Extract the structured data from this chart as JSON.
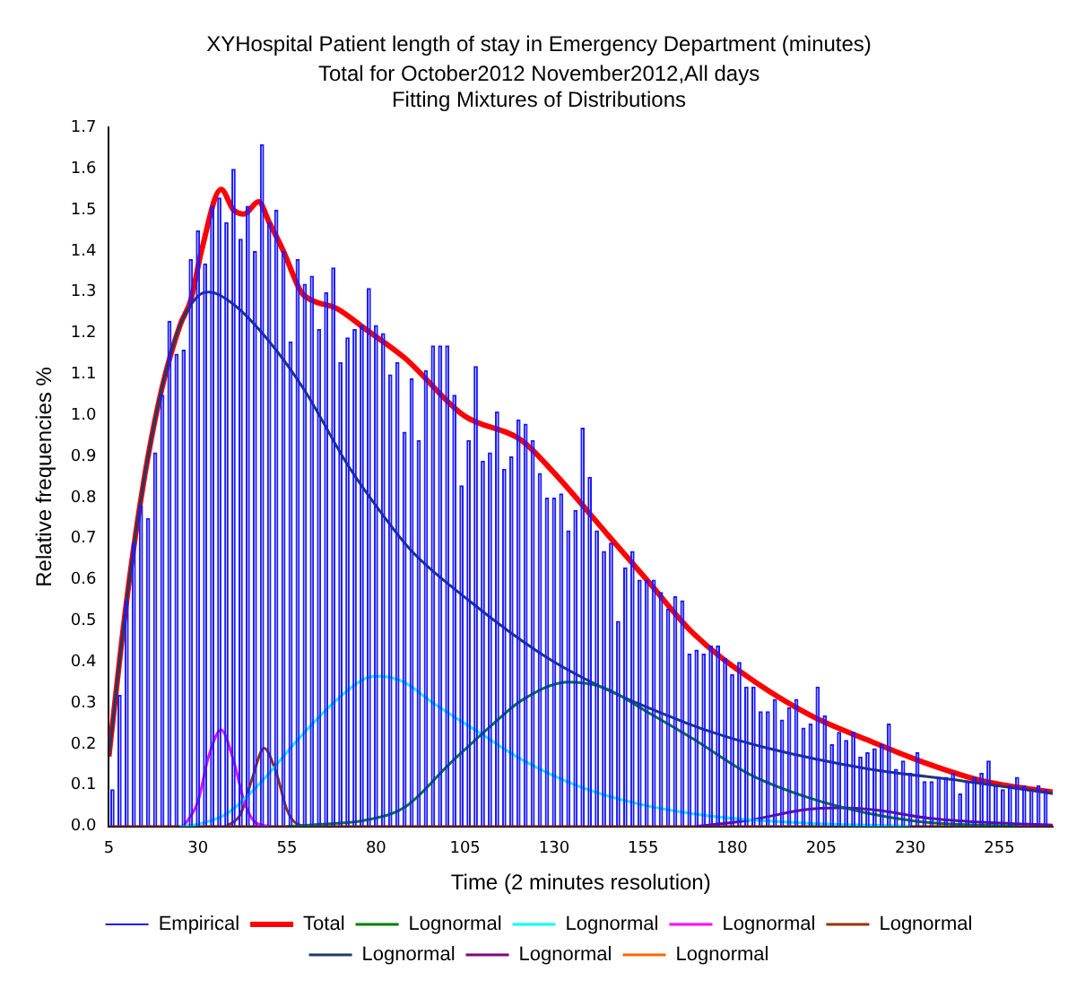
{
  "chart_data": {
    "type": "histogram",
    "title": "XYHospital Patient length of stay in Emergency Department (minutes)",
    "subtitle": "Total for October2012 November2012,All days\nFitting Mixtures of Distributions",
    "xlabel": "Time (2 minutes resolution)",
    "ylabel": "Relative frequencies %",
    "bins": [
      5,
      7,
      9,
      11,
      13,
      15,
      17,
      19,
      21,
      23,
      25,
      27,
      29,
      31,
      33,
      35,
      37,
      39,
      41,
      43,
      45,
      47,
      49,
      51,
      53,
      55,
      57,
      59,
      61,
      63,
      65,
      67,
      69,
      71,
      73,
      75,
      77,
      79,
      81,
      83,
      85,
      87,
      89,
      91,
      93,
      95,
      97,
      99,
      101,
      103,
      105,
      107,
      109,
      111,
      113,
      115,
      117,
      119,
      121,
      123,
      125,
      127,
      129,
      131,
      133,
      135,
      137,
      139,
      141,
      143,
      145,
      147,
      149,
      151,
      153,
      155,
      157,
      159,
      161,
      163,
      165,
      167,
      169,
      171,
      173,
      175,
      177,
      179,
      181,
      183,
      185,
      187,
      189,
      191,
      193,
      195,
      197,
      199,
      201,
      203,
      205,
      207,
      209,
      211,
      213,
      215,
      217,
      219,
      221,
      223,
      225,
      227,
      229,
      231,
      233,
      235,
      237,
      239,
      241,
      243,
      245,
      247,
      249,
      251,
      253,
      255,
      257,
      259,
      261,
      263,
      265,
      267,
      269
    ],
    "series": [
      {
        "name": "Empirical",
        "type": "histogram",
        "color": "#1a1aff",
        "values": [
          0.09,
          0.32,
          0.55,
          0.69,
          0.78,
          0.75,
          0.91,
          1.05,
          1.23,
          1.15,
          1.16,
          1.38,
          1.45,
          1.37,
          1.51,
          1.53,
          1.47,
          1.6,
          1.43,
          1.51,
          1.4,
          1.66,
          1.47,
          1.5,
          1.4,
          1.18,
          1.38,
          1.32,
          1.34,
          1.21,
          1.3,
          1.36,
          1.13,
          1.19,
          1.21,
          1.22,
          1.31,
          1.22,
          1.2,
          1.1,
          1.13,
          0.96,
          1.09,
          0.94,
          1.11,
          1.17,
          1.17,
          1.17,
          1.05,
          0.83,
          0.94,
          1.12,
          0.89,
          0.91,
          1.01,
          0.87,
          0.9,
          0.99,
          0.98,
          0.94,
          0.86,
          0.8,
          0.8,
          0.81,
          0.72,
          0.77,
          0.97,
          0.85,
          0.72,
          0.67,
          0.69,
          0.5,
          0.63,
          0.67,
          0.6,
          0.6,
          0.6,
          0.57,
          0.53,
          0.56,
          0.55,
          0.42,
          0.43,
          0.42,
          0.44,
          0.44,
          0.41,
          0.37,
          0.4,
          0.34,
          0.34,
          0.28,
          0.28,
          0.31,
          0.26,
          0.29,
          0.31,
          0.24,
          0.25,
          0.34,
          0.27,
          0.2,
          0.23,
          0.21,
          0.23,
          0.17,
          0.18,
          0.19,
          0.2,
          0.25,
          0.14,
          0.16,
          0.13,
          0.18,
          0.11,
          0.11,
          0.12,
          0.12,
          0.13,
          0.08,
          0.11,
          0.12,
          0.13,
          0.16,
          0.1,
          0.09,
          0.1,
          0.12,
          0.1,
          0.09,
          0.1,
          0.09
        ]
      },
      {
        "name": "Total",
        "type": "line",
        "color": "#ff0000",
        "x": [
          5,
          10,
          15,
          20,
          25,
          28,
          31,
          36.5,
          40,
          43,
          47,
          50,
          54,
          59,
          62,
          69,
          77,
          88,
          104.6,
          120.7,
          130,
          145,
          156,
          169,
          185,
          202,
          218,
          234,
          250.5,
          270
        ],
        "values": [
          0.17,
          0.55,
          0.85,
          1.07,
          1.22,
          1.28,
          1.4,
          1.55,
          1.5,
          1.49,
          1.52,
          1.47,
          1.4,
          1.3,
          1.28,
          1.26,
          1.21,
          1.14,
          1.0,
          0.94,
          0.86,
          0.71,
          0.6,
          0.47,
          0.36,
          0.27,
          0.21,
          0.155,
          0.11,
          0.083
        ]
      },
      {
        "name": "Lognormal",
        "type": "line",
        "color": "#008000",
        "x": [
          55,
          65,
          77,
          88,
          101,
          113,
          121,
          134,
          144,
          156,
          169,
          185,
          202,
          218,
          234,
          260
        ],
        "values": [
          0,
          0.005,
          0.015,
          0.046,
          0.155,
          0.25,
          0.307,
          0.351,
          0.337,
          0.279,
          0.213,
          0.126,
          0.068,
          0.032,
          0.01,
          0
        ]
      },
      {
        "name": "Lognormal",
        "type": "line",
        "color": "#00ffff",
        "x": [
          25,
          30,
          38,
          48,
          58,
          68,
          77,
          81,
          88,
          96,
          109,
          121,
          137,
          154,
          174,
          200,
          230
        ],
        "values": [
          0,
          0.005,
          0.03,
          0.11,
          0.21,
          0.3,
          0.36,
          0.365,
          0.35,
          0.3,
          0.228,
          0.162,
          0.097,
          0.054,
          0.025,
          0.008,
          0
        ]
      },
      {
        "name": "Lognormal",
        "type": "line",
        "color": "#ff00ff",
        "x": [
          26,
          30,
          33,
          36.5,
          40,
          43,
          46,
          50
        ],
        "values": [
          0,
          0.06,
          0.17,
          0.235,
          0.16,
          0.06,
          0.01,
          0
        ]
      },
      {
        "name": "Lognormal",
        "type": "line",
        "color": "#993300",
        "x": [
          38,
          42,
          45,
          48.6,
          52,
          55,
          58,
          62
        ],
        "values": [
          0,
          0.03,
          0.11,
          0.19,
          0.13,
          0.04,
          0.005,
          0
        ]
      },
      {
        "name": "Lognormal",
        "type": "line",
        "color": "#1f3a68",
        "x": [
          5,
          10,
          15,
          20,
          25,
          30,
          33,
          40,
          50,
          60,
          72,
          80,
          90,
          106,
          118,
          130,
          143,
          156,
          174,
          190,
          218,
          245,
          270
        ],
        "values": [
          0.17,
          0.55,
          0.85,
          1.07,
          1.22,
          1.29,
          1.3,
          1.27,
          1.18,
          1.06,
          0.88,
          0.78,
          0.67,
          0.55,
          0.47,
          0.4,
          0.34,
          0.29,
          0.23,
          0.19,
          0.14,
          0.11,
          0.08
        ]
      },
      {
        "name": "Lognormal",
        "type": "line",
        "color": "#800080",
        "x": [
          170,
          185,
          200,
          210,
          220,
          235,
          250,
          270
        ],
        "values": [
          0,
          0.015,
          0.04,
          0.045,
          0.04,
          0.02,
          0.01,
          0.003
        ]
      },
      {
        "name": "Lognormal",
        "type": "line",
        "color": "#ff6600",
        "x": [
          5,
          270
        ],
        "values": [
          0,
          0
        ]
      }
    ],
    "xlim": [
      5,
      270
    ],
    "xticks": [
      5,
      30,
      55,
      80,
      105,
      130,
      155,
      180,
      205,
      230,
      255
    ],
    "ylim": [
      0,
      1.7
    ],
    "yticks": [
      {
        "value": 0,
        "label": "0.0"
      },
      0.1,
      0.2,
      0.3,
      0.4,
      0.5,
      0.6,
      0.7,
      0.8,
      0.9,
      {
        "value": 1,
        "label": "1.0"
      },
      1.1,
      1.2,
      1.3,
      1.4,
      1.5,
      1.6,
      1.7
    ],
    "legend": "bottom"
  }
}
